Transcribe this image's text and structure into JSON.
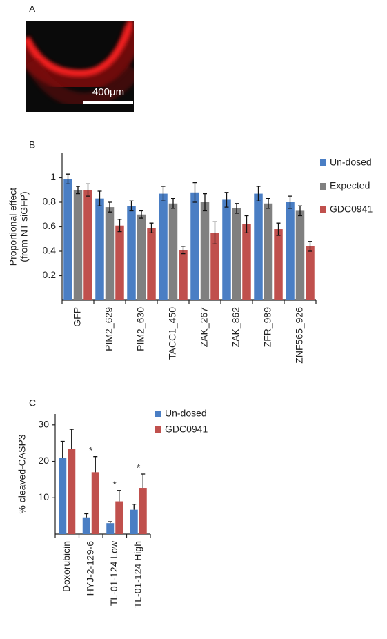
{
  "panel_labels": [
    "A",
    "B",
    "C"
  ],
  "image": {
    "scale_bar_label": "400μm"
  },
  "chart_data": [
    {
      "type": "bar",
      "ylabel": [
        "Proportional effect",
        "(from NT siGFP)"
      ],
      "categories": [
        "GFP",
        "PIM2_629",
        "PIM2_630",
        "TACC1_450",
        "ZAK_267",
        "ZAK_862",
        "ZFR_989",
        "ZNF565_926"
      ],
      "series": [
        {
          "name": "Un-dosed",
          "color": "#4a7ec4",
          "values": [
            0.99,
            0.83,
            0.77,
            0.87,
            0.88,
            0.82,
            0.87,
            0.8
          ],
          "errors": [
            0.04,
            0.06,
            0.04,
            0.06,
            0.08,
            0.06,
            0.06,
            0.05
          ]
        },
        {
          "name": "Expected",
          "color": "#808080",
          "values": [
            0.9,
            0.76,
            0.7,
            0.79,
            0.8,
            0.75,
            0.79,
            0.73
          ],
          "errors": [
            0.03,
            0.04,
            0.03,
            0.04,
            0.07,
            0.04,
            0.04,
            0.04
          ]
        },
        {
          "name": "GDC0941",
          "color": "#c0504d",
          "values": [
            0.9,
            0.61,
            0.59,
            0.41,
            0.55,
            0.62,
            0.58,
            0.44
          ],
          "errors": [
            0.05,
            0.05,
            0.04,
            0.03,
            0.09,
            0.07,
            0.05,
            0.04
          ]
        }
      ],
      "error_bars": "both",
      "ylim": [
        0,
        1.2
      ],
      "yticks": [
        0.2,
        0.4,
        0.6,
        0.8,
        1
      ]
    },
    {
      "type": "bar",
      "ylabel": [
        "% cleaved-CASP3"
      ],
      "categories": [
        "Doxorubicin",
        "HYJ-2-129-6",
        "TL-01-124 Low",
        "TL-01-124 High"
      ],
      "series": [
        {
          "name": "Un-dosed",
          "color": "#4a7ec4",
          "values": [
            21,
            4.6,
            3,
            6.7
          ],
          "errors": [
            4.5,
            1,
            0.4,
            1.5
          ]
        },
        {
          "name": "GDC0941",
          "color": "#c0504d",
          "values": [
            23.5,
            17,
            9,
            12.7
          ],
          "errors": [
            5.3,
            4.3,
            3,
            3.8
          ]
        }
      ],
      "error_bars": "upper",
      "significance": [
        null,
        "*",
        "*",
        "*"
      ],
      "ylim": [
        0,
        33
      ],
      "yticks": [
        10,
        20,
        30
      ]
    }
  ]
}
